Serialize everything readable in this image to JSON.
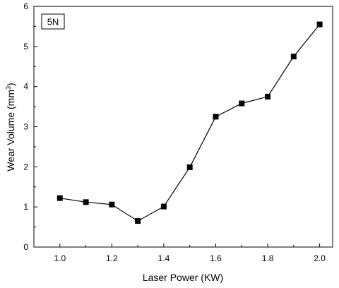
{
  "chart_data": {
    "type": "line",
    "title": "",
    "annotation": "5N",
    "xlabel": "Laser Power (KW)",
    "ylabel_main": "Wear Volume (mm",
    "ylabel_sup": "3",
    "ylabel_close": ")",
    "xlim": [
      0.9,
      2.05
    ],
    "ylim": [
      0,
      6
    ],
    "xticks": [
      1.0,
      1.2,
      1.4,
      1.6,
      1.8,
      2.0
    ],
    "xtick_labels": [
      "1.0",
      "1.2",
      "1.4",
      "1.6",
      "1.8",
      "2.0"
    ],
    "yticks": [
      0,
      1,
      2,
      3,
      4,
      5,
      6
    ],
    "ytick_labels": [
      "0",
      "1",
      "2",
      "3",
      "4",
      "5",
      "6"
    ],
    "series": [
      {
        "x": [
          1.0,
          1.1,
          1.2,
          1.3,
          1.4,
          1.5,
          1.6,
          1.7,
          1.8,
          1.9,
          2.0
        ],
        "y": [
          1.22,
          1.12,
          1.06,
          0.65,
          1.01,
          1.99,
          3.25,
          3.58,
          3.75,
          4.75,
          5.55
        ],
        "marker": "square",
        "color": "#000000"
      }
    ],
    "grid": false,
    "legend": "none"
  }
}
